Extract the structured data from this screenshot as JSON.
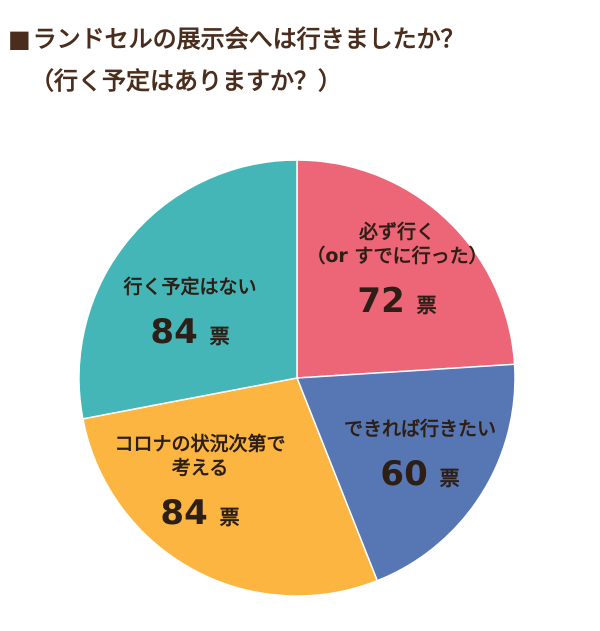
{
  "header": {
    "marker": "■",
    "line1": "ランドセルの展示会へは行きましたか？",
    "line2": "（行く予定はありますか？）"
  },
  "chart_data": {
    "type": "pie",
    "unit": "票",
    "slices": [
      {
        "label_lines": [
          "必ず行く",
          "（or すでに行った）"
        ],
        "value": 72,
        "color": "#ec6677"
      },
      {
        "label_lines": [
          "できれば行きたい"
        ],
        "value": 60,
        "color": "#5677b4"
      },
      {
        "label_lines": [
          "コロナの状況次第で",
          "考える"
        ],
        "value": 84,
        "color": "#fbb540"
      },
      {
        "label_lines": [
          "行く予定はない"
        ],
        "value": 84,
        "color": "#44b6b8"
      }
    ]
  }
}
